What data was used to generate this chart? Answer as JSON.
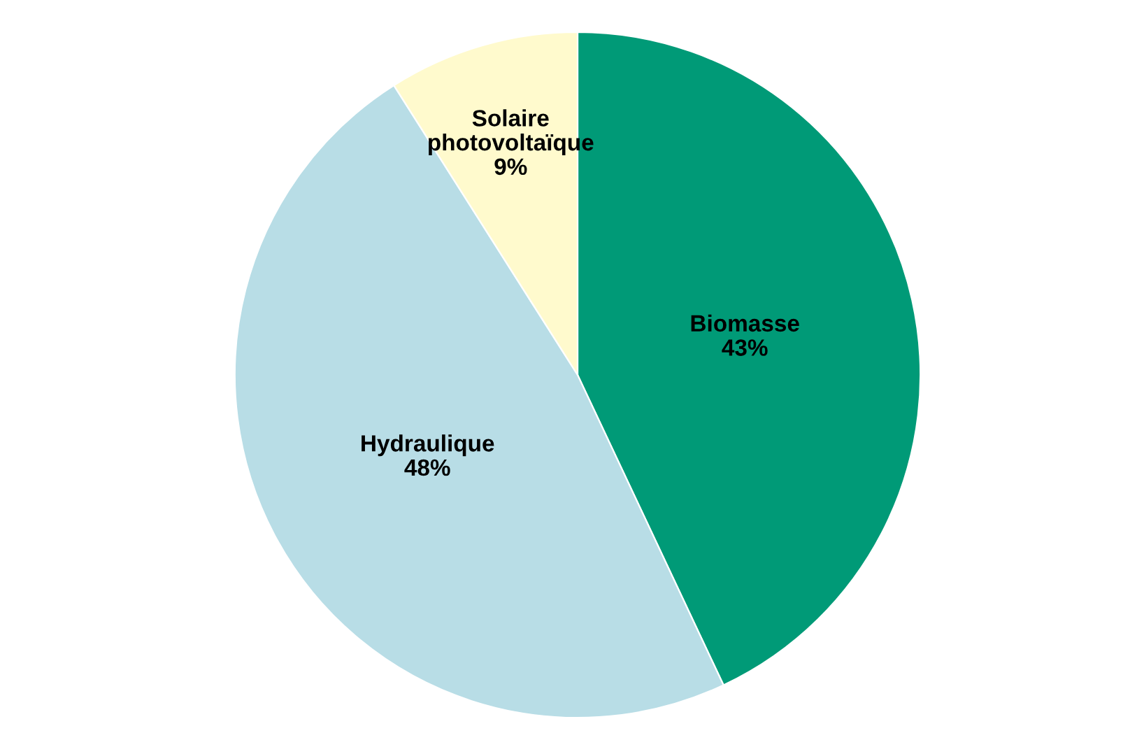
{
  "chart_data": {
    "type": "pie",
    "categories": [
      "Biomasse",
      "Hydraulique",
      "Solaire\nphotovoltaïque"
    ],
    "values": [
      43,
      48,
      9
    ],
    "value_labels": [
      "43%",
      "48%",
      "9%"
    ],
    "colors": [
      "#009a77",
      "#b8dde6",
      "#fffacd"
    ]
  }
}
